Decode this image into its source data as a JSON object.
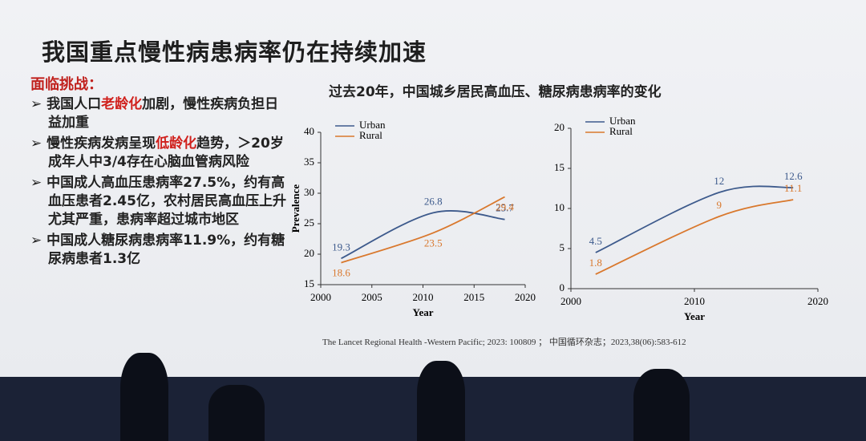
{
  "slide_title": "我国重点慢性病患病率仍在持续加速",
  "challenges": {
    "heading": "面临挑战：",
    "bullets": [
      {
        "parts": [
          "我国人口",
          "老龄化",
          "加剧，慢性疾病负担日益加重"
        ],
        "highlight": [
          1
        ]
      },
      {
        "parts": [
          "慢性疾病发病呈现",
          "低龄化",
          "趋势，＞20岁成年人中3/4存在心脑血管病风险"
        ],
        "highlight": [
          1
        ]
      },
      {
        "parts": [
          "中国成人高血压患病率27.5%，约有高血压患者2.45亿，农村居民高血压上升尤其严重，患病率超过城市地区"
        ],
        "highlight": []
      },
      {
        "parts": [
          "中国成人糖尿病患病率11.9%，约有糖尿病患者1.3亿"
        ],
        "highlight": []
      }
    ]
  },
  "charts_heading": "过去20年，中国城乡居民高血压、糖尿病患病率的变化",
  "source": "The Lancet Regional Health -Western Pacific; 2023: 100809 ； 中国循环杂志；2023,38(06):583-612",
  "chart_data": [
    {
      "type": "line",
      "x_label": "Year",
      "y_label": "Prevalence",
      "xlim": [
        2000,
        2020
      ],
      "xticks": [
        2000,
        2005,
        2010,
        2015,
        2020
      ],
      "ylim": [
        15,
        40
      ],
      "yticks": [
        15,
        20,
        25,
        30,
        35,
        40
      ],
      "legend": "upper left",
      "x": [
        2002,
        2011,
        2018
      ],
      "series": [
        {
          "name": "Urban",
          "color": "#3d5a8c",
          "values": [
            19.3,
            26.8,
            25.7
          ]
        },
        {
          "name": "Rural",
          "color": "#d9782d",
          "values": [
            18.6,
            23.5,
            29.4
          ]
        }
      ]
    },
    {
      "type": "line",
      "x_label": "Year",
      "xlim": [
        2000,
        2020
      ],
      "xticks": [
        2000,
        2010,
        2020
      ],
      "ylim": [
        0,
        20
      ],
      "yticks": [
        0,
        5,
        10,
        15,
        20
      ],
      "legend": "upper left",
      "x": [
        2002,
        2012,
        2018
      ],
      "series": [
        {
          "name": "Urban",
          "color": "#3d5a8c",
          "values": [
            4.5,
            12.0,
            12.6
          ]
        },
        {
          "name": "Rural",
          "color": "#d9782d",
          "values": [
            1.8,
            9.0,
            11.1
          ]
        }
      ]
    }
  ]
}
